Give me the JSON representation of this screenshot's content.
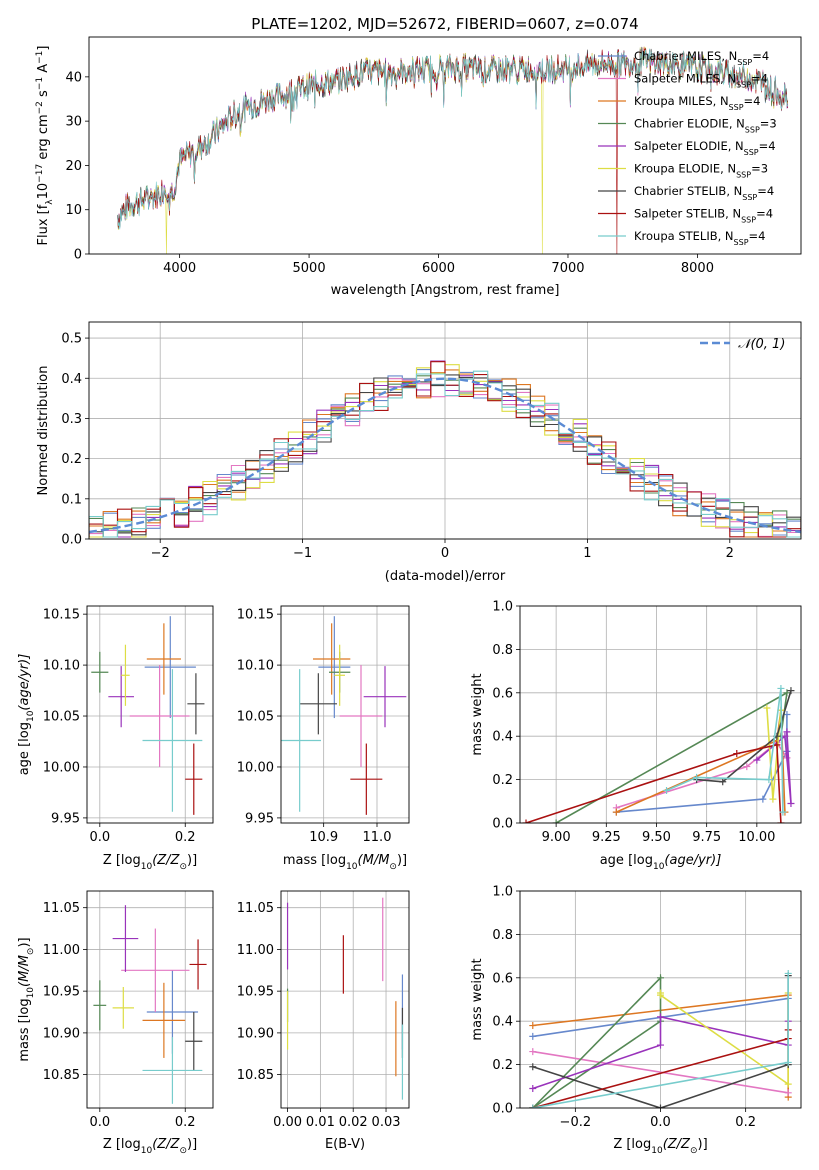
{
  "colors": {
    "Chabrier MILES": "#6688cc",
    "Salpeter MILES": "#e377c2",
    "Kroupa MILES": "#dd7722",
    "Chabrier ELODIE": "#558855",
    "Salpeter ELODIE": "#9933bb",
    "Kroupa ELODIE": "#dddd44",
    "Chabrier STELIB": "#444444",
    "Salpeter STELIB": "#aa1111",
    "Kroupa STELIB": "#77cccc",
    "gaussian": "#5b8bd4"
  },
  "chart_data": [
    {
      "id": "spectrum",
      "type": "line",
      "title": "PLATE=1202, MJD=52672, FIBERID=0607, z=0.074",
      "xlabel": "wavelength [Angstrom, rest frame]",
      "ylabel": "Flux [f",
      "ylabel_parts": [
        "Flux [f",
        "λ",
        "10",
        "−17",
        " erg cm",
        "−2",
        " s",
        "−1",
        " A",
        "−1",
        "]"
      ],
      "xlim": [
        3300,
        8800
      ],
      "ylim": [
        0,
        49
      ],
      "xticks": [
        4000,
        5000,
        6000,
        7000,
        8000
      ],
      "yticks": [
        0,
        10,
        20,
        30,
        40
      ],
      "grid": false,
      "legend_position": "right",
      "legend": [
        {
          "label": "Chabrier MILES, N",
          "sub": "SSP",
          "suffix": "=4"
        },
        {
          "label": "Salpeter MILES, N",
          "sub": "SSP",
          "suffix": "=4"
        },
        {
          "label": "Kroupa MILES, N",
          "sub": "SSP",
          "suffix": "=4"
        },
        {
          "label": "Chabrier ELODIE, N",
          "sub": "SSP",
          "suffix": "=3"
        },
        {
          "label": "Salpeter ELODIE, N",
          "sub": "SSP",
          "suffix": "=4"
        },
        {
          "label": "Kroupa ELODIE, N",
          "sub": "SSP",
          "suffix": "=3"
        },
        {
          "label": "Chabrier STELIB, N",
          "sub": "SSP",
          "suffix": "=4"
        },
        {
          "label": "Salpeter STELIB, N",
          "sub": "SSP",
          "suffix": "=4"
        },
        {
          "label": "Kroupa STELIB, N",
          "sub": "SSP",
          "suffix": "=4"
        }
      ],
      "continuum": {
        "x": [
          3520,
          3600,
          3700,
          3800,
          3900,
          3950,
          4000,
          4100,
          4200,
          4300,
          4400,
          4500,
          4700,
          4900,
          5000,
          5200,
          5400,
          5600,
          5800,
          6000,
          6200,
          6400,
          6600,
          6800,
          7000,
          7200,
          7400,
          7600,
          7800,
          8000,
          8200,
          8400,
          8600,
          8700
        ],
        "y": [
          8,
          11,
          12,
          13,
          15,
          14,
          21,
          23,
          25,
          28,
          31,
          33,
          35,
          37,
          38,
          39,
          41,
          41,
          41.5,
          42,
          42,
          41.5,
          42,
          41.5,
          42,
          43,
          43,
          43.5,
          43,
          42,
          41,
          40,
          37,
          36
        ]
      },
      "dips": [
        {
          "series": "Kroupa ELODIE",
          "x": 3900,
          "y": 0
        },
        {
          "series": "Kroupa ELODIE",
          "x": 6800,
          "y": 0
        },
        {
          "series": "Salpeter STELIB",
          "x": 7380,
          "y": 0
        }
      ]
    },
    {
      "id": "residuals",
      "type": "step",
      "xlabel": "(data-model)/error",
      "ylabel": "Normed distribution",
      "xlim": [
        -2.5,
        2.5
      ],
      "ylim": [
        0,
        0.54
      ],
      "xticks": [
        -2,
        -1,
        0,
        1,
        2
      ],
      "yticks": [
        0.0,
        0.1,
        0.2,
        0.3,
        0.4,
        0.5
      ],
      "grid": true,
      "legend_position": "top-right",
      "legend": [
        "𝒩(0, 1)"
      ],
      "gaussian": {
        "mean": 0,
        "sigma": 1,
        "style": "dashed"
      },
      "bin_width": 0.1
    },
    {
      "id": "age-vs-z",
      "type": "errorbar",
      "xlabel": "Z [log",
      "xlabel_parts": [
        "Z [log",
        "10",
        "(Z/Z",
        "⊙",
        ")]"
      ],
      "ylabel_parts": [
        "age  [log",
        "10",
        "(age/yr)]"
      ],
      "xlim": [
        -0.03,
        0.265
      ],
      "ylim": [
        9.945,
        10.158
      ],
      "xticks": [
        0.0,
        0.2
      ],
      "yticks": [
        9.95,
        10.0,
        10.05,
        10.1,
        10.15
      ],
      "grid": true,
      "points": [
        {
          "series": "Chabrier MILES",
          "x": 0.165,
          "y": 10.098,
          "xerr": 0.06,
          "yerr": 0.05
        },
        {
          "series": "Salpeter MILES",
          "x": 0.14,
          "y": 10.05,
          "xerr": 0.07,
          "yerr": 0.05
        },
        {
          "series": "Kroupa MILES",
          "x": 0.15,
          "y": 10.106,
          "xerr": 0.04,
          "yerr": 0.035
        },
        {
          "series": "Chabrier ELODIE",
          "x": 0.0,
          "y": 10.093,
          "xerr": 0.02,
          "yerr": 0.02
        },
        {
          "series": "Salpeter ELODIE",
          "x": 0.05,
          "y": 10.069,
          "xerr": 0.03,
          "yerr": 0.03
        },
        {
          "series": "Kroupa ELODIE",
          "x": 0.06,
          "y": 10.09,
          "xerr": 0.01,
          "yerr": 0.03
        },
        {
          "series": "Chabrier STELIB",
          "x": 0.225,
          "y": 10.062,
          "xerr": 0.02,
          "yerr": 0.03
        },
        {
          "series": "Salpeter STELIB",
          "x": 0.22,
          "y": 9.988,
          "xerr": 0.02,
          "yerr": 0.035
        },
        {
          "series": "Kroupa STELIB",
          "x": 0.17,
          "y": 10.026,
          "xerr": 0.07,
          "yerr": 0.07
        }
      ]
    },
    {
      "id": "age-vs-mass",
      "type": "errorbar",
      "xlabel_parts": [
        "mass [log",
        "10",
        "(M/M",
        "⊙",
        ")]"
      ],
      "xlim": [
        10.82,
        11.06
      ],
      "ylim": [
        9.945,
        10.158
      ],
      "xticks": [
        10.9,
        11.0
      ],
      "yticks": [
        9.95,
        10.0,
        10.05,
        10.1,
        10.15
      ],
      "grid": true,
      "points": [
        {
          "series": "Chabrier MILES",
          "x": 10.92,
          "y": 10.098,
          "xerr": 0.03,
          "yerr": 0.05
        },
        {
          "series": "Salpeter MILES",
          "x": 10.97,
          "y": 10.05,
          "xerr": 0.04,
          "yerr": 0.05
        },
        {
          "series": "Kroupa MILES",
          "x": 10.915,
          "y": 10.106,
          "xerr": 0.035,
          "yerr": 0.035
        },
        {
          "series": "Chabrier ELODIE",
          "x": 10.93,
          "y": 10.093,
          "xerr": 0.02,
          "yerr": 0.02
        },
        {
          "series": "Salpeter ELODIE",
          "x": 11.015,
          "y": 10.069,
          "xerr": 0.04,
          "yerr": 0.03
        },
        {
          "series": "Kroupa ELODIE",
          "x": 10.93,
          "y": 10.09,
          "xerr": 0.01,
          "yerr": 0.03
        },
        {
          "series": "Chabrier STELIB",
          "x": 10.89,
          "y": 10.062,
          "xerr": 0.035,
          "yerr": 0.03
        },
        {
          "series": "Salpeter STELIB",
          "x": 10.98,
          "y": 9.988,
          "xerr": 0.03,
          "yerr": 0.035
        },
        {
          "series": "Kroupa STELIB",
          "x": 10.855,
          "y": 10.026,
          "xerr": 0.04,
          "yerr": 0.07
        }
      ]
    },
    {
      "id": "weight-vs-age",
      "type": "line",
      "xlabel_parts": [
        "age  [log",
        "10",
        "(age/yr)]"
      ],
      "ylabel": "mass weight",
      "xlim": [
        8.82,
        10.22
      ],
      "ylim": [
        0,
        1.0
      ],
      "xticks": [
        9.0,
        9.25,
        9.5,
        9.75,
        10.0
      ],
      "xticklabels": [
        "9.00",
        "9.25",
        "9.50",
        "9.75",
        "10.00"
      ],
      "yticks": [
        0.0,
        0.2,
        0.4,
        0.6,
        0.8,
        1.0
      ],
      "grid": true,
      "series": [
        {
          "name": "Chabrier MILES",
          "x": [
            9.3,
            10.03,
            10.15,
            10.15
          ],
          "y": [
            0.05,
            0.11,
            0.33,
            0.5
          ]
        },
        {
          "name": "Salpeter MILES",
          "x": [
            9.3,
            9.95,
            10.1,
            10.15
          ],
          "y": [
            0.07,
            0.26,
            0.37,
            0.3
          ]
        },
        {
          "name": "Kroupa MILES",
          "x": [
            9.3,
            10.1,
            10.12,
            10.14
          ],
          "y": [
            0.05,
            0.38,
            0.52,
            0.05
          ]
        },
        {
          "name": "Chabrier ELODIE",
          "x": [
            9.0,
            10.15,
            10.12
          ],
          "y": [
            0.0,
            0.6,
            0.4
          ]
        },
        {
          "name": "Salpeter ELODIE",
          "x": [
            10.0,
            10.14,
            10.17,
            10.15
          ],
          "y": [
            0.29,
            0.4,
            0.09,
            0.42
          ]
        },
        {
          "name": "Kroupa ELODIE",
          "x": [
            10.05,
            10.08,
            10.12
          ],
          "y": [
            0.53,
            0.11,
            0.52
          ]
        },
        {
          "name": "Chabrier STELIB",
          "x": [
            9.7,
            9.83,
            10.1,
            10.17
          ],
          "y": [
            0.2,
            0.19,
            0.4,
            0.61
          ]
        },
        {
          "name": "Salpeter STELIB",
          "x": [
            8.85,
            9.9,
            10.1,
            10.12
          ],
          "y": [
            0.0,
            0.32,
            0.36,
            0.0
          ]
        },
        {
          "name": "Kroupa STELIB",
          "x": [
            9.55,
            9.7,
            10.06,
            10.12,
            10.13
          ],
          "y": [
            0.15,
            0.21,
            0.2,
            0.62,
            0.05
          ]
        }
      ]
    },
    {
      "id": "mass-vs-z",
      "type": "errorbar",
      "xlabel_parts": [
        "Z [log",
        "10",
        "(Z/Z",
        "⊙",
        ")]"
      ],
      "ylabel_parts": [
        "mass [log",
        "10",
        "(M/M",
        "⊙",
        ")]"
      ],
      "xlim": [
        -0.03,
        0.265
      ],
      "ylim": [
        10.81,
        11.07
      ],
      "xticks": [
        0.0,
        0.2
      ],
      "yticks": [
        10.85,
        10.9,
        10.95,
        11.0,
        11.05
      ],
      "grid": true,
      "points": [
        {
          "series": "Chabrier MILES",
          "x": 0.17,
          "y": 10.925,
          "xerr": 0.06,
          "yerr": 0.05
        },
        {
          "series": "Salpeter MILES",
          "x": 0.13,
          "y": 10.975,
          "xerr": 0.08,
          "yerr": 0.05
        },
        {
          "series": "Kroupa MILES",
          "x": 0.15,
          "y": 10.915,
          "xerr": 0.05,
          "yerr": 0.045
        },
        {
          "series": "Chabrier ELODIE",
          "x": 0.0,
          "y": 10.933,
          "xerr": 0.015,
          "yerr": 0.03
        },
        {
          "series": "Salpeter ELODIE",
          "x": 0.06,
          "y": 11.013,
          "xerr": 0.03,
          "yerr": 0.04
        },
        {
          "series": "Kroupa ELODIE",
          "x": 0.055,
          "y": 10.93,
          "xerr": 0.025,
          "yerr": 0.025
        },
        {
          "series": "Chabrier STELIB",
          "x": 0.22,
          "y": 10.89,
          "xerr": 0.02,
          "yerr": 0.035
        },
        {
          "series": "Salpeter STELIB",
          "x": 0.23,
          "y": 10.982,
          "xerr": 0.02,
          "yerr": 0.03
        },
        {
          "series": "Kroupa STELIB",
          "x": 0.17,
          "y": 10.855,
          "xerr": 0.07,
          "yerr": 0.04
        }
      ]
    },
    {
      "id": "mass-vs-ebv",
      "type": "errorbar",
      "xlabel": "E(B-V)",
      "xlim": [
        -0.002,
        0.037
      ],
      "ylim": [
        10.81,
        11.07
      ],
      "xticks": [
        0.0,
        0.01,
        0.02,
        0.03
      ],
      "xticklabels": [
        "0.00",
        "0.01",
        "0.02",
        "0.03"
      ],
      "yticks": [
        10.85,
        10.9,
        10.95,
        11.0,
        11.05
      ],
      "grid": true,
      "points": [
        {
          "series": "Chabrier MILES",
          "x": 0.035,
          "y": 10.925,
          "xerr": 0,
          "yerr": 0.045
        },
        {
          "series": "Salpeter MILES",
          "x": 0.029,
          "y": 11.012,
          "xerr": 0,
          "yerr": 0.05
        },
        {
          "series": "Kroupa MILES",
          "x": 0.033,
          "y": 10.893,
          "xerr": 0,
          "yerr": 0.045
        },
        {
          "series": "Chabrier ELODIE",
          "x": 0.0,
          "y": 10.933,
          "xerr": 0,
          "yerr": 0.02
        },
        {
          "series": "Salpeter ELODIE",
          "x": 0.0,
          "y": 11.016,
          "xerr": 0,
          "yerr": 0.04
        },
        {
          "series": "Kroupa ELODIE",
          "x": 0.0,
          "y": 10.915,
          "xerr": 0,
          "yerr": 0.035
        },
        {
          "series": "Chabrier STELIB",
          "x": 0.035,
          "y": 10.9,
          "xerr": 0,
          "yerr": 0.03
        },
        {
          "series": "Salpeter STELIB",
          "x": 0.017,
          "y": 10.982,
          "xerr": 0,
          "yerr": 0.035
        },
        {
          "series": "Kroupa STELIB",
          "x": 0.035,
          "y": 10.865,
          "xerr": 0,
          "yerr": 0.045
        }
      ]
    },
    {
      "id": "weight-vs-z",
      "type": "line",
      "xlabel_parts": [
        "Z [log",
        "10",
        "(Z/Z",
        "⊙",
        ")]"
      ],
      "ylabel": "mass weight",
      "xlim": [
        -0.33,
        0.33
      ],
      "ylim": [
        0,
        1.0
      ],
      "xticks": [
        -0.2,
        0.0,
        0.2
      ],
      "xticklabels": [
        "−0.2",
        "0.0",
        "0.2"
      ],
      "yticks": [
        0.0,
        0.2,
        0.4,
        0.6,
        0.8,
        1.0
      ],
      "grid": true,
      "series": [
        {
          "name": "Chabrier MILES",
          "x": [
            -0.3,
            0.3
          ],
          "y": [
            0.33,
            0.505
          ]
        },
        {
          "name": "Kroupa MILES",
          "x": [
            -0.3,
            0.3,
            0.3
          ],
          "y": [
            0.38,
            0.52,
            0.05
          ]
        },
        {
          "name": "Salpeter MILES",
          "x": [
            -0.3,
            0.3
          ],
          "y": [
            0.26,
            0.07
          ]
        },
        {
          "name": "Chabrier ELODIE",
          "x": [
            -0.3,
            0.0,
            0.0,
            -0.3
          ],
          "y": [
            0.0,
            0.6,
            0.4,
            0.0
          ]
        },
        {
          "name": "Salpeter ELODIE",
          "x": [
            -0.3,
            0.0,
            0.0,
            0.3,
            0.3
          ],
          "y": [
            0.09,
            0.29,
            0.42,
            0.29,
            0.4
          ]
        },
        {
          "name": "Kroupa ELODIE",
          "x": [
            0.0,
            0.0,
            0.3,
            0.3
          ],
          "y": [
            0.53,
            0.52,
            0.11,
            0.53
          ]
        },
        {
          "name": "Chabrier STELIB",
          "x": [
            -0.3,
            0.0,
            0.3,
            0.3
          ],
          "y": [
            0.19,
            0.0,
            0.2,
            0.61
          ]
        },
        {
          "name": "Salpeter STELIB",
          "x": [
            -0.3,
            0.3,
            0.3
          ],
          "y": [
            0.0,
            0.32,
            0.36
          ]
        },
        {
          "name": "Kroupa STELIB",
          "x": [
            -0.3,
            0.3,
            0.3
          ],
          "y": [
            0.0,
            0.21,
            0.62
          ]
        }
      ]
    }
  ]
}
